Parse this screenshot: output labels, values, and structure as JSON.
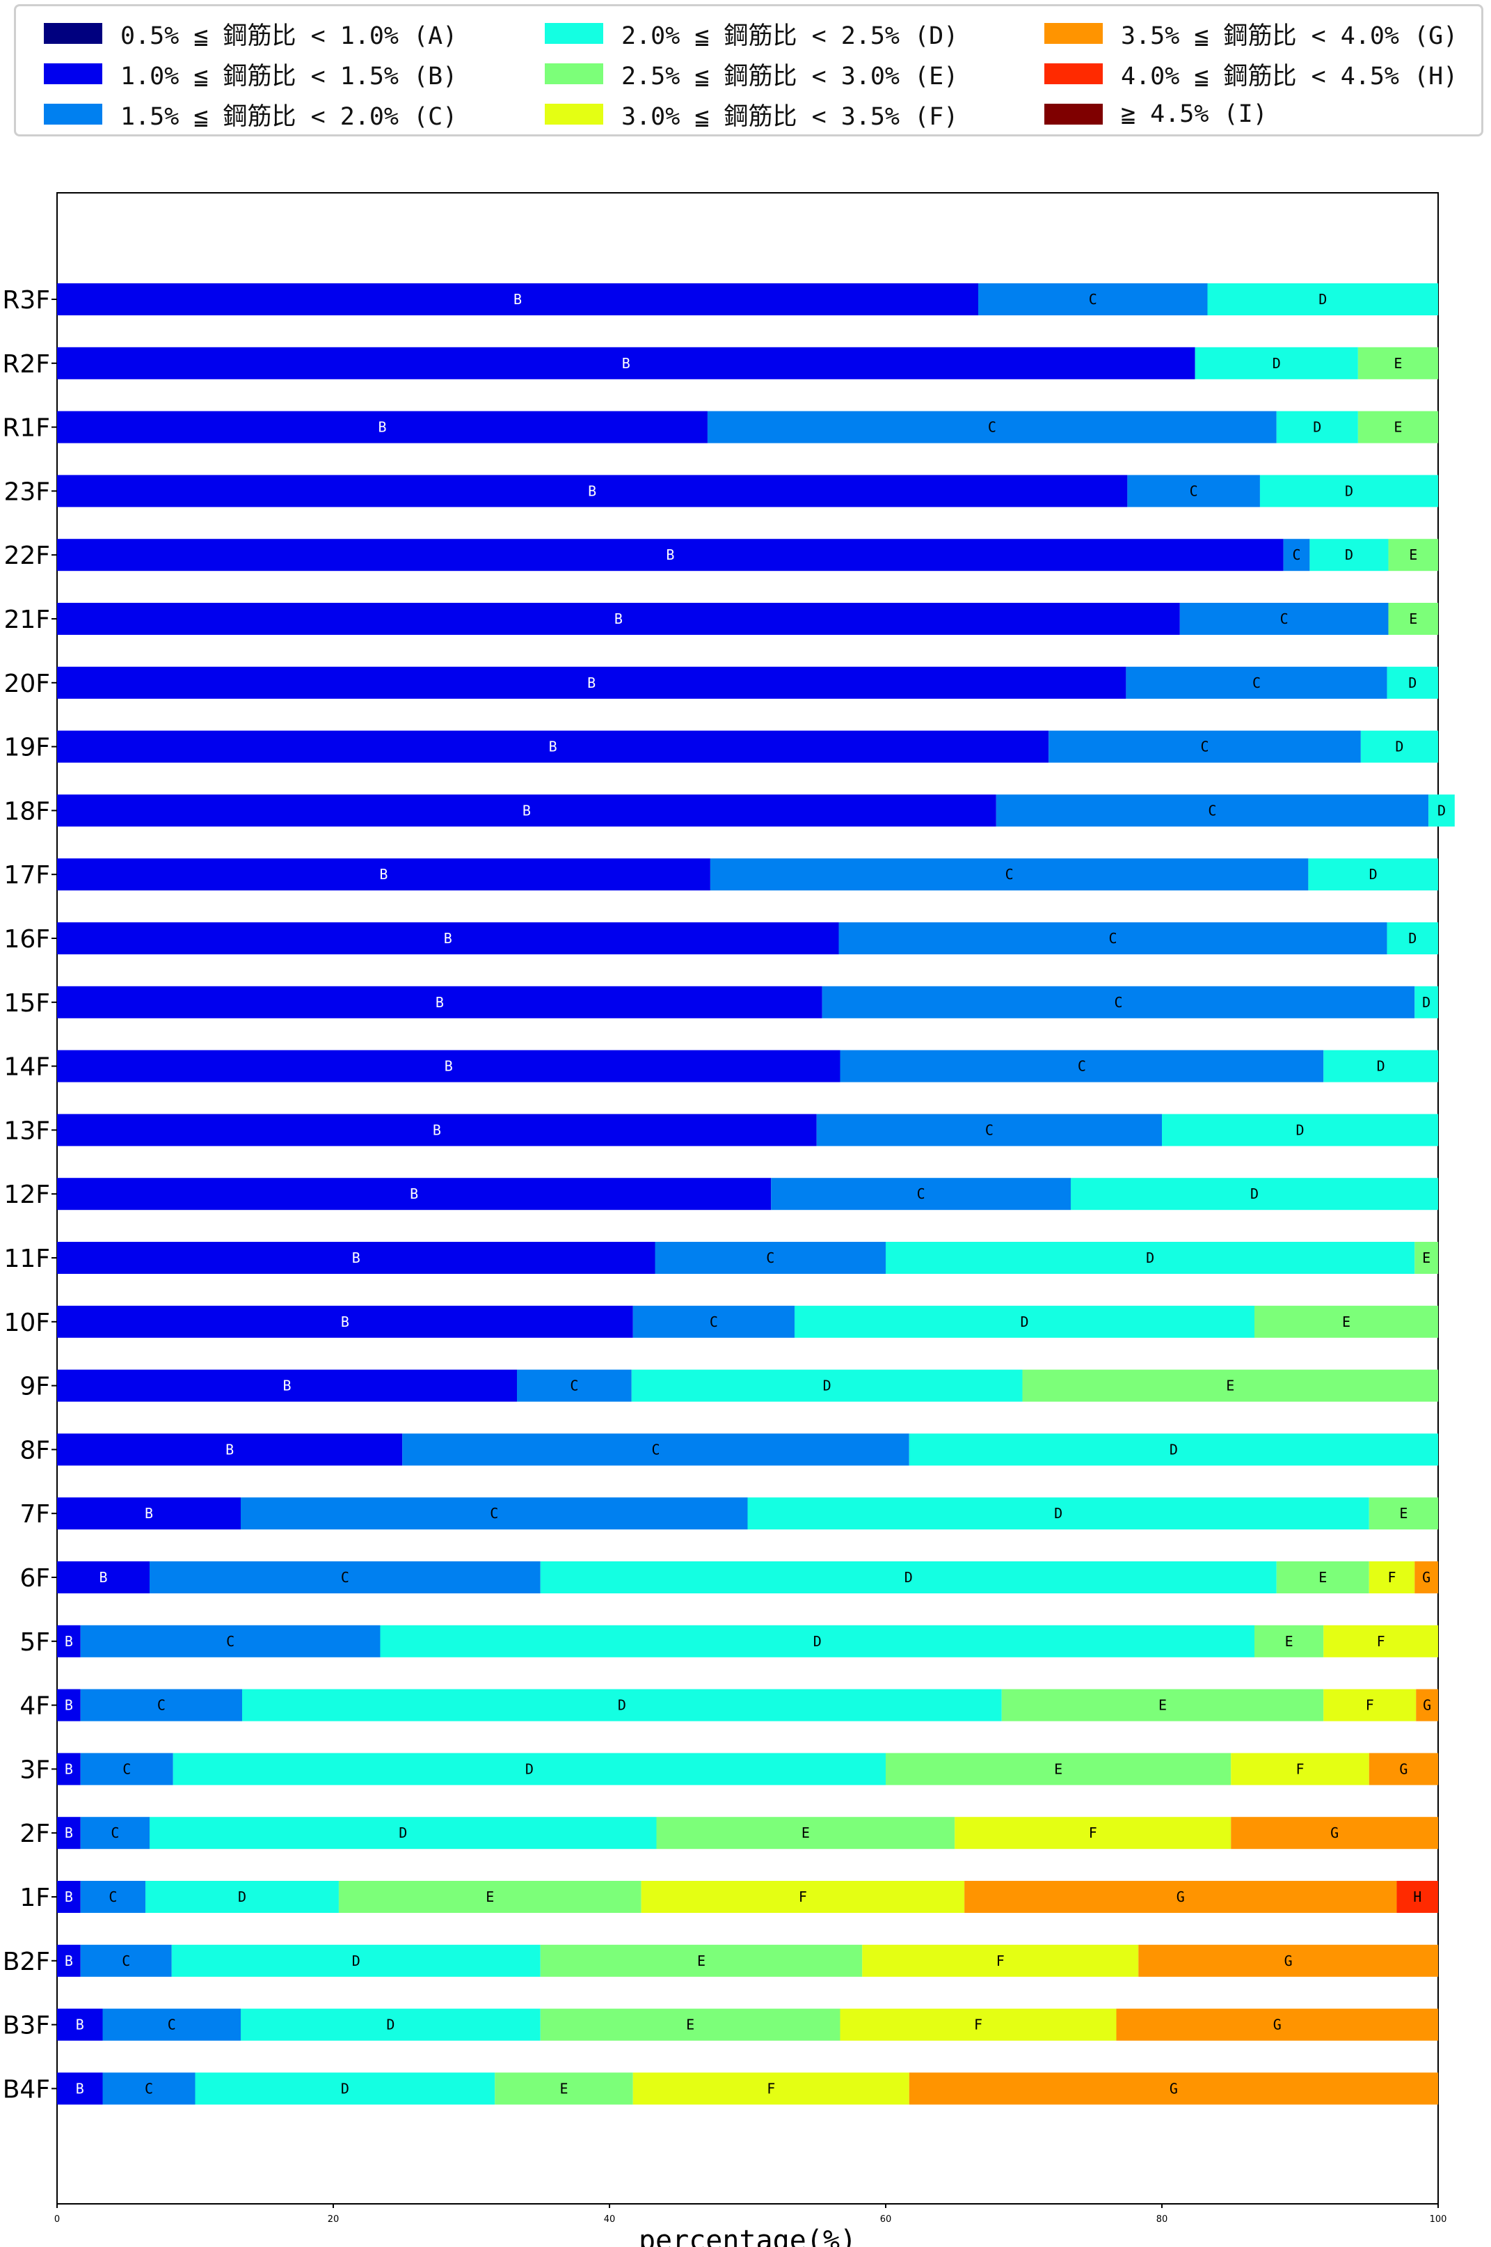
{
  "legend": {
    "items": [
      {
        "key": "A",
        "label": "0.5% ≦ 鋼筋比 < 1.0% (A)",
        "color": "#00007f"
      },
      {
        "key": "B",
        "label": "1.0% ≦ 鋼筋比 < 1.5% (B)",
        "color": "#0000ee"
      },
      {
        "key": "C",
        "label": "1.5% ≦ 鋼筋比 < 2.0% (C)",
        "color": "#0080f0"
      },
      {
        "key": "D",
        "label": "2.0% ≦ 鋼筋比 < 2.5% (D)",
        "color": "#14ffe2"
      },
      {
        "key": "E",
        "label": "2.5% ≦ 鋼筋比 < 3.0% (E)",
        "color": "#7cff79"
      },
      {
        "key": "F",
        "label": "3.0% ≦ 鋼筋比 < 3.5% (F)",
        "color": "#e4ff13"
      },
      {
        "key": "G",
        "label": "3.5% ≦ 鋼筋比 < 4.0% (G)",
        "color": "#ff9400"
      },
      {
        "key": "H",
        "label": "4.0% ≦ 鋼筋比 < 4.5% (H)",
        "color": "#ff2a00"
      },
      {
        "key": "I",
        "label": "≧ 4.5% (I)",
        "color": "#7f0000"
      }
    ]
  },
  "chart_data": {
    "type": "bar",
    "orientation": "horizontal",
    "stacked": true,
    "xlabel": "percentage(%)",
    "ylabel": "",
    "title": "",
    "xlim": [
      0,
      100
    ],
    "xticks": [
      0,
      20,
      40,
      60,
      80,
      100
    ],
    "legend_position": "top",
    "grid": false,
    "categories": [
      "R3F",
      "R2F",
      "R1F",
      "23F",
      "22F",
      "21F",
      "20F",
      "19F",
      "18F",
      "17F",
      "16F",
      "15F",
      "14F",
      "13F",
      "12F",
      "11F",
      "10F",
      "9F",
      "8F",
      "7F",
      "6F",
      "5F",
      "4F",
      "3F",
      "2F",
      "1F",
      "B2F",
      "B3F",
      "B4F"
    ],
    "series": [
      {
        "name": "A",
        "values": [
          0,
          0,
          0,
          0,
          0,
          0,
          0,
          0,
          0,
          0,
          0,
          0,
          0,
          0,
          0,
          0,
          0,
          0,
          0,
          0,
          0,
          0,
          0,
          0,
          0,
          0,
          0,
          0,
          0
        ]
      },
      {
        "name": "B",
        "values": [
          66.7,
          82.4,
          47.1,
          77.5,
          88.8,
          81.3,
          77.4,
          71.8,
          68.0,
          47.3,
          56.6,
          55.4,
          56.7,
          55.0,
          51.7,
          43.3,
          41.7,
          33.3,
          25.0,
          13.3,
          6.7,
          1.7,
          1.7,
          1.7,
          1.7,
          1.7,
          1.7,
          3.3,
          3.3
        ]
      },
      {
        "name": "C",
        "values": [
          16.6,
          0,
          41.2,
          9.6,
          1.9,
          15.1,
          18.9,
          22.6,
          31.3,
          43.3,
          39.7,
          42.9,
          35.0,
          25.0,
          21.7,
          16.7,
          11.7,
          8.3,
          36.7,
          36.7,
          28.3,
          21.7,
          11.7,
          6.7,
          5.0,
          4.7,
          6.6,
          10.0,
          6.7
        ]
      },
      {
        "name": "D",
        "values": [
          16.7,
          11.8,
          5.9,
          12.9,
          5.7,
          0,
          3.7,
          5.6,
          1.9,
          9.4,
          3.7,
          1.7,
          8.3,
          20.0,
          26.6,
          38.3,
          33.3,
          28.3,
          38.3,
          45.0,
          53.3,
          63.3,
          55.0,
          51.6,
          36.7,
          14.0,
          26.7,
          21.7,
          21.7
        ]
      },
      {
        "name": "E",
        "values": [
          0,
          5.8,
          5.8,
          0,
          3.6,
          3.6,
          0,
          0,
          0,
          0,
          0,
          0,
          0,
          0,
          0,
          1.7,
          13.3,
          30.1,
          0,
          5.0,
          6.7,
          5.0,
          23.3,
          25.0,
          21.6,
          21.9,
          23.3,
          21.7,
          10.0
        ]
      },
      {
        "name": "F",
        "values": [
          0,
          0,
          0,
          0,
          0,
          0,
          0,
          0,
          0,
          0,
          0,
          0,
          0,
          0,
          0,
          0,
          0,
          0,
          0,
          0,
          3.3,
          8.3,
          6.7,
          10.0,
          20.0,
          23.4,
          20.0,
          20.0,
          20.0
        ]
      },
      {
        "name": "G",
        "values": [
          0,
          0,
          0,
          0,
          0,
          0,
          0,
          0,
          0,
          0,
          0,
          0,
          0,
          0,
          0,
          0,
          0,
          0,
          0,
          0,
          1.7,
          0,
          1.6,
          5.0,
          15.0,
          31.3,
          21.7,
          23.3,
          38.3
        ]
      },
      {
        "name": "H",
        "values": [
          0,
          0,
          0,
          0,
          0,
          0,
          0,
          0,
          0,
          0,
          0,
          0,
          0,
          0,
          0,
          0,
          0,
          0,
          0,
          0,
          0,
          0,
          0,
          0,
          0,
          3.0,
          0,
          0,
          0
        ]
      },
      {
        "name": "I",
        "values": [
          0,
          0,
          0,
          0,
          0,
          0,
          0,
          0,
          0,
          0,
          0,
          0,
          0,
          0,
          0,
          0,
          0,
          0,
          0,
          0,
          0,
          0,
          0,
          0,
          0,
          0,
          0,
          0,
          0
        ]
      }
    ]
  }
}
